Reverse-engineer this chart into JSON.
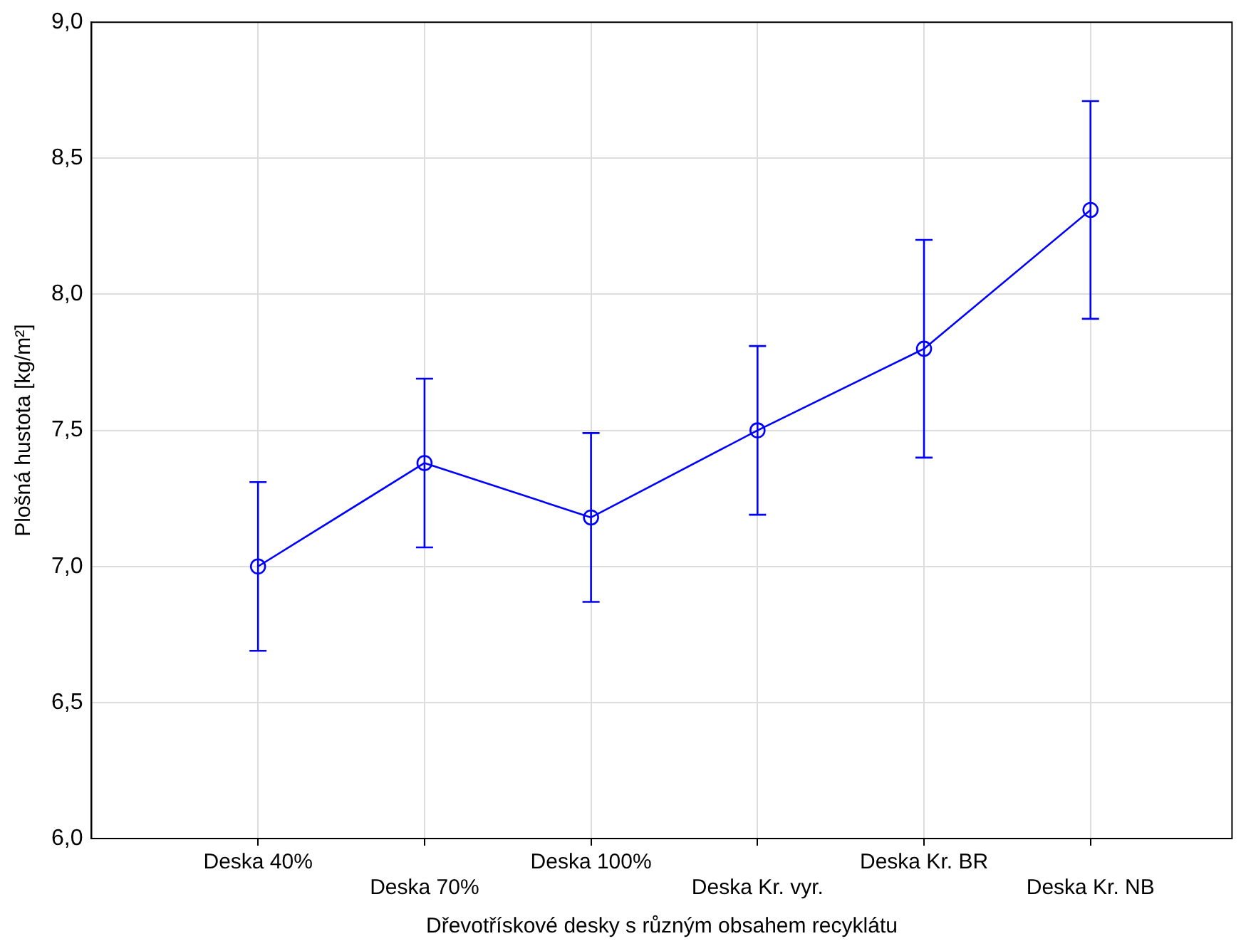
{
  "chart_data": {
    "type": "line",
    "xlabel": "Dřevotřískové desky s různým obsahem recyklátu",
    "ylabel": "Plošná hustota [kg/m²]",
    "categories": [
      "Deska 40%",
      "Deska 70%",
      "Deska 100%",
      "Deska Kr. vyr.",
      "Deska Kr. BR",
      "Deska Kr. NB"
    ],
    "series": [
      {
        "color": "#0000ff",
        "values": [
          7.0,
          7.38,
          7.18,
          7.5,
          7.8,
          8.31
        ],
        "errors": [
          0.31,
          0.31,
          0.31,
          0.31,
          0.4,
          0.4
        ]
      }
    ],
    "ylim": [
      6,
      9
    ],
    "yticks": [
      {
        "value": 6,
        "label": "6,0"
      },
      {
        "value": 6.5,
        "label": "6,5"
      },
      {
        "value": 7,
        "label": "7,0"
      },
      {
        "value": 7.5,
        "label": "7,5"
      },
      {
        "value": 8,
        "label": "8,0"
      },
      {
        "value": 8.5,
        "label": "8,5"
      },
      {
        "value": 9,
        "label": "9,0"
      }
    ],
    "grid": true,
    "marker": "circle",
    "line_style": "solid",
    "legend": false
  }
}
